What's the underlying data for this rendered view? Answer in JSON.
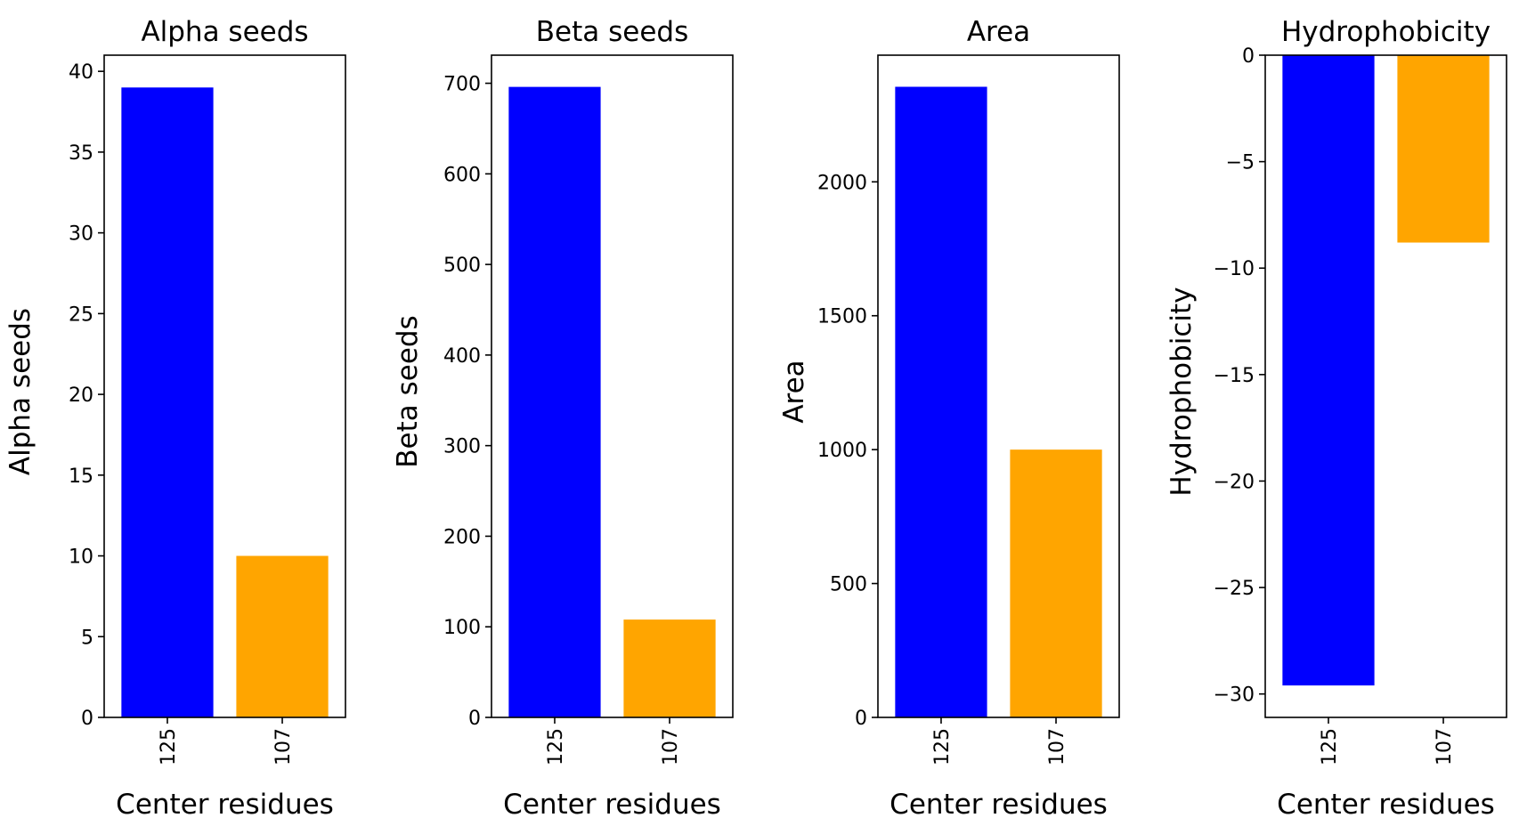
{
  "chart_data": [
    {
      "type": "bar",
      "title": "Alpha seeds",
      "xlabel": "Center residues",
      "ylabel": "Alpha seeds",
      "categories": [
        "125",
        "107"
      ],
      "values": [
        39,
        10
      ],
      "colors": [
        "#0000ff",
        "#ffa500"
      ],
      "ylim": [
        0,
        41
      ],
      "yticks": [
        0,
        5,
        10,
        15,
        20,
        25,
        30,
        35,
        40
      ],
      "ytick_labels": [
        "0",
        "5",
        "10",
        "15",
        "20",
        "25",
        "30",
        "35",
        "40"
      ],
      "grid": false
    },
    {
      "type": "bar",
      "title": "Beta seeds",
      "xlabel": "Center residues",
      "ylabel": "Beta seeds",
      "categories": [
        "125",
        "107"
      ],
      "values": [
        696,
        108
      ],
      "colors": [
        "#0000ff",
        "#ffa500"
      ],
      "ylim": [
        0,
        731
      ],
      "yticks": [
        0,
        100,
        200,
        300,
        400,
        500,
        600,
        700
      ],
      "ytick_labels": [
        "0",
        "100",
        "200",
        "300",
        "400",
        "500",
        "600",
        "700"
      ],
      "grid": false
    },
    {
      "type": "bar",
      "title": "Area",
      "xlabel": "Center residues",
      "ylabel": "Area",
      "categories": [
        "125",
        "107"
      ],
      "values": [
        2355,
        1000
      ],
      "colors": [
        "#0000ff",
        "#ffa500"
      ],
      "ylim": [
        0,
        2473
      ],
      "yticks": [
        0,
        500,
        1000,
        1500,
        2000
      ],
      "ytick_labels": [
        "0",
        "500",
        "1000",
        "1500",
        "2000"
      ],
      "grid": false
    },
    {
      "type": "bar",
      "title": "Hydrophobicity",
      "xlabel": "Center residues",
      "ylabel": "Hydrophobicity",
      "categories": [
        "125",
        "107"
      ],
      "values": [
        -29.6,
        -8.8
      ],
      "colors": [
        "#0000ff",
        "#ffa500"
      ],
      "ylim": [
        -31.1,
        0
      ],
      "yticks": [
        0,
        -5,
        -10,
        -15,
        -20,
        -25,
        -30
      ],
      "ytick_labels": [
        "0",
        "−5",
        "−10",
        "−15",
        "−20",
        "−25",
        "−30"
      ],
      "grid": false
    }
  ]
}
